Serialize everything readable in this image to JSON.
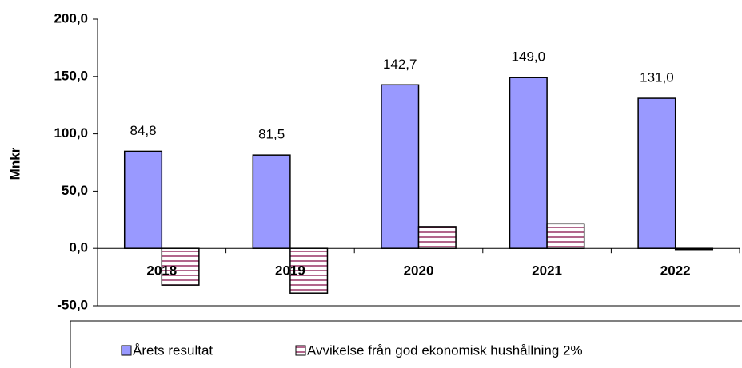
{
  "chart_data": {
    "type": "bar",
    "y_label": "Mnkr",
    "categories": [
      "2018",
      "2019",
      "2020",
      "2021",
      "2022"
    ],
    "series": [
      {
        "name": "Årets resultat",
        "color": "#9999ff",
        "values": [
          84.8,
          81.5,
          142.7,
          149.0,
          131.0
        ],
        "value_labels": [
          "84,8",
          "81,5",
          "142,7",
          "149,0",
          "131,0"
        ]
      },
      {
        "name": "Avvikelse från god ekonomisk hushållning 2%",
        "color": "#993366",
        "pattern": "horizontal-hatch",
        "values": [
          -32,
          -39,
          19,
          21.5,
          -1
        ]
      }
    ],
    "ylim": [
      -50,
      200
    ],
    "yticks": [
      {
        "value": -50,
        "label": "-50,0"
      },
      {
        "value": 0,
        "label": "0,0"
      },
      {
        "value": 50,
        "label": "50,0"
      },
      {
        "value": 100,
        "label": "100,0"
      },
      {
        "value": 150,
        "label": "150,0"
      },
      {
        "value": 200,
        "label": "200,0"
      }
    ],
    "legend": "bottom"
  }
}
